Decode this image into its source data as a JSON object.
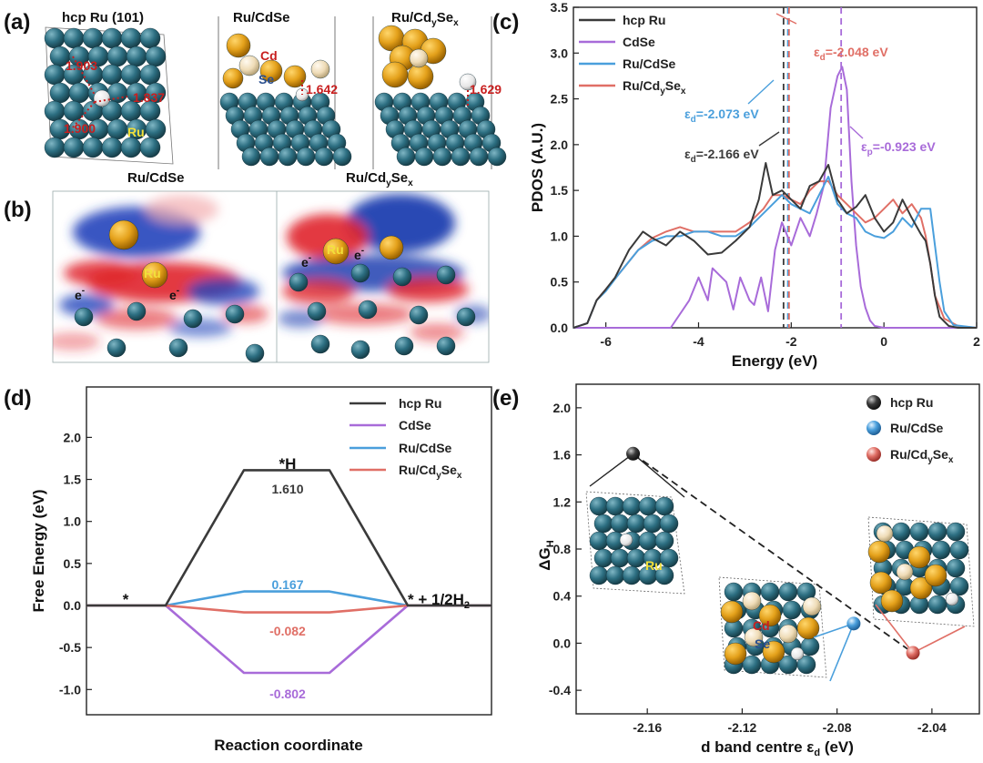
{
  "figure": {
    "panel_labels": [
      "(a)",
      "(b)",
      "(c)",
      "(d)",
      "(e)"
    ],
    "colors": {
      "hcp_ru": "#3a3a3a",
      "cdse": "#a86bd9",
      "ru_cdse": "#4a9fdc",
      "ru_cdyse": "#e06f66",
      "ru_atom": "#2d6f82",
      "cd_atom": "#e4a11b",
      "se_atom": "#efdcb7",
      "h_atom": "#e8e8e8",
      "charge_pos": "#d9222a",
      "charge_neg": "#1f3fb0",
      "distance_text": "#c81f1f"
    }
  },
  "panel_a": {
    "titles": [
      "hcp Ru (101)",
      "Ru/CdSe",
      "Ru/Cd",
      "y",
      "Se",
      "x"
    ],
    "distances": [
      "1.903",
      "1.837",
      "1.900",
      "1.642",
      "1.629"
    ],
    "atom_labels": [
      "Ru",
      "Cd",
      "Se"
    ]
  },
  "panel_b": {
    "titles": [
      "Ru/CdSe",
      "Ru/Cd",
      "y",
      "Se",
      "x"
    ],
    "atom_label": "Ru",
    "electron_label": "e",
    "electron_charge": "-"
  },
  "panel_c": {
    "legend": [
      "hcp Ru",
      "CdSe",
      "Ru/CdSe",
      "Ru/Cd",
      "y",
      "Se",
      "x"
    ],
    "annotations": [
      {
        "sym": "ε",
        "sub": "d",
        "value": "=-2.048 eV"
      },
      {
        "sym": "ε",
        "sub": "d",
        "value": "=-2.073 eV"
      },
      {
        "sym": "ε",
        "sub": "d",
        "value": "=-2.166 eV"
      },
      {
        "sym": "ε",
        "sub": "p",
        "value": "=-0.923 eV"
      }
    ]
  },
  "panel_d": {
    "legend": [
      "hcp Ru",
      "CdSe",
      "Ru/CdSe",
      "Ru/Cd",
      "y",
      "Se",
      "x"
    ],
    "state_labels": [
      "*",
      "*H",
      "* + 1/2H",
      "2"
    ],
    "value_labels": [
      "1.610",
      "0.167",
      "-0.082",
      "-0.802"
    ]
  },
  "panel_e": {
    "legend": [
      "hcp Ru",
      "Ru/CdSe",
      "Ru/Cd",
      "y",
      "Se",
      "x"
    ],
    "atom_labels": [
      "Ru",
      "Cd",
      "Se"
    ]
  },
  "chart_data": [
    {
      "type": "line",
      "panel": "c",
      "xlabel": "Energy (eV)",
      "ylabel": "PDOS (A.U.)",
      "xlim": [
        -6.7,
        2
      ],
      "ylim": [
        0,
        3.5
      ],
      "xticks": [
        "-6",
        "-4",
        "-2",
        "0",
        "2"
      ],
      "yticks": [
        "0.0",
        "0.5",
        "1.0",
        "1.5",
        "2.0",
        "2.5",
        "3.0",
        "3.5"
      ],
      "legend_position": "top-left",
      "vlines": [
        {
          "series": "hcp Ru",
          "x": -2.166
        },
        {
          "series": "Ru/CdSe",
          "x": -2.073
        },
        {
          "series": "Ru/CdySex",
          "x": -2.048
        },
        {
          "series": "CdSe",
          "x": -0.923
        }
      ],
      "series": [
        {
          "name": "hcp Ru",
          "x": [
            -6.7,
            -6.4,
            -6.2,
            -6.0,
            -5.8,
            -5.5,
            -5.2,
            -5.0,
            -4.7,
            -4.4,
            -4.1,
            -3.8,
            -3.5,
            -3.2,
            -2.9,
            -2.7,
            -2.55,
            -2.4,
            -2.2,
            -2.0,
            -1.8,
            -1.6,
            -1.4,
            -1.2,
            -1.0,
            -0.8,
            -0.6,
            -0.4,
            -0.2,
            0.0,
            0.2,
            0.4,
            0.6,
            0.8,
            0.9,
            1.0,
            1.1,
            1.2,
            1.4,
            1.6,
            2.0
          ],
          "y": [
            0,
            0.05,
            0.3,
            0.42,
            0.55,
            0.85,
            1.05,
            0.98,
            0.9,
            1.05,
            0.95,
            0.8,
            0.82,
            0.95,
            1.1,
            1.4,
            1.8,
            1.45,
            1.5,
            1.4,
            1.3,
            1.55,
            1.6,
            1.78,
            1.4,
            1.25,
            1.32,
            1.45,
            1.2,
            1.05,
            1.15,
            1.4,
            1.2,
            1.02,
            0.95,
            0.7,
            0.35,
            0.12,
            0.02,
            0,
            0
          ]
        },
        {
          "name": "CdSe",
          "x": [
            -6.7,
            -4.6,
            -4.2,
            -4.0,
            -3.8,
            -3.7,
            -3.6,
            -3.4,
            -3.25,
            -3.1,
            -2.9,
            -2.8,
            -2.65,
            -2.5,
            -2.35,
            -2.2,
            -2.0,
            -1.8,
            -1.6,
            -1.45,
            -1.3,
            -1.15,
            -1.0,
            -0.9,
            -0.8,
            -0.7,
            -0.6,
            -0.5,
            -0.4,
            -0.3,
            -0.2,
            0.0,
            2.0
          ],
          "y": [
            0,
            0,
            0.3,
            0.55,
            0.3,
            0.65,
            0.6,
            0.5,
            0.2,
            0.55,
            0.3,
            0.25,
            0.55,
            0.18,
            0.85,
            1.15,
            0.9,
            1.2,
            1.0,
            1.25,
            1.55,
            2.4,
            2.75,
            2.85,
            2.6,
            1.6,
            0.9,
            0.45,
            0.22,
            0.08,
            0.02,
            0,
            0
          ]
        },
        {
          "name": "Ru/CdSe",
          "x": [
            -6.7,
            -6.4,
            -6.2,
            -6.0,
            -5.7,
            -5.3,
            -5.0,
            -4.7,
            -4.4,
            -4.1,
            -3.8,
            -3.5,
            -3.2,
            -2.9,
            -2.6,
            -2.4,
            -2.2,
            -2.0,
            -1.8,
            -1.6,
            -1.4,
            -1.2,
            -1.0,
            -0.8,
            -0.6,
            -0.4,
            -0.2,
            0.0,
            0.2,
            0.4,
            0.6,
            0.8,
            1.0,
            1.1,
            1.2,
            1.3,
            1.5,
            2.0
          ],
          "y": [
            0,
            0.05,
            0.3,
            0.4,
            0.6,
            0.85,
            0.95,
            1.0,
            1.0,
            1.05,
            1.05,
            1.0,
            1.0,
            1.1,
            1.25,
            1.35,
            1.45,
            1.35,
            1.3,
            1.25,
            1.45,
            1.65,
            1.35,
            1.25,
            1.2,
            1.05,
            1.0,
            0.98,
            1.05,
            1.2,
            1.1,
            1.3,
            1.3,
            0.9,
            0.5,
            0.18,
            0.03,
            0
          ]
        },
        {
          "name": "Ru/CdySex",
          "x": [
            -6.7,
            -6.4,
            -6.2,
            -6.0,
            -5.7,
            -5.3,
            -5.0,
            -4.7,
            -4.4,
            -4.1,
            -3.8,
            -3.5,
            -3.2,
            -2.9,
            -2.6,
            -2.4,
            -2.2,
            -2.0,
            -1.8,
            -1.6,
            -1.4,
            -1.2,
            -1.0,
            -0.8,
            -0.6,
            -0.4,
            -0.2,
            0.0,
            0.2,
            0.4,
            0.6,
            0.8,
            0.9,
            1.0,
            1.1,
            1.3,
            1.6,
            2.0
          ],
          "y": [
            0,
            0.05,
            0.3,
            0.42,
            0.6,
            0.85,
            0.98,
            1.05,
            1.1,
            1.05,
            1.05,
            1.05,
            1.05,
            1.15,
            1.3,
            1.45,
            1.45,
            1.4,
            1.35,
            1.5,
            1.6,
            1.6,
            1.45,
            1.35,
            1.25,
            1.15,
            1.2,
            1.3,
            1.4,
            1.25,
            1.35,
            1.2,
            1.0,
            0.7,
            0.35,
            0.1,
            0.02,
            0
          ]
        }
      ]
    },
    {
      "type": "line",
      "panel": "d",
      "xlabel": "Reaction coordinate",
      "ylabel": "Free Energy (eV)",
      "ylim": [
        -1.3,
        2.6
      ],
      "yticks": [
        "-1.0",
        "-0.5",
        "0.0",
        "0.5",
        "1.0",
        "1.5",
        "2.0"
      ],
      "legend_position": "top-right",
      "series": [
        {
          "name": "hcp Ru",
          "values": [
            0,
            1.61,
            0
          ]
        },
        {
          "name": "CdSe",
          "values": [
            0,
            -0.802,
            0
          ]
        },
        {
          "name": "Ru/CdSe",
          "values": [
            0,
            0.167,
            0
          ]
        },
        {
          "name": "Ru/CdySex",
          "values": [
            0,
            -0.082,
            0
          ]
        }
      ]
    },
    {
      "type": "scatter",
      "panel": "e",
      "xlabel": "d band centre",
      "xlabel_symbol": "ε",
      "xlabel_sub": "d",
      "xlabel_unit": "(eV)",
      "ylabel": "ΔG",
      "ylabel_sub": "H",
      "xlim": [
        -2.19,
        -2.02
      ],
      "ylim": [
        -0.6,
        2.2
      ],
      "xticks": [
        "-2.16",
        "-2.12",
        "-2.08",
        "-2.04"
      ],
      "yticks": [
        "-0.4",
        "0.0",
        "0.4",
        "0.8",
        "1.2",
        "1.6",
        "2.0"
      ],
      "legend_position": "top-right",
      "trend_line": "dashed",
      "series": [
        {
          "name": "hcp Ru",
          "x": [
            -2.166
          ],
          "y": [
            1.61
          ]
        },
        {
          "name": "Ru/CdSe",
          "x": [
            -2.073
          ],
          "y": [
            0.167
          ]
        },
        {
          "name": "Ru/CdySex",
          "x": [
            -2.048
          ],
          "y": [
            -0.082
          ]
        }
      ]
    }
  ]
}
